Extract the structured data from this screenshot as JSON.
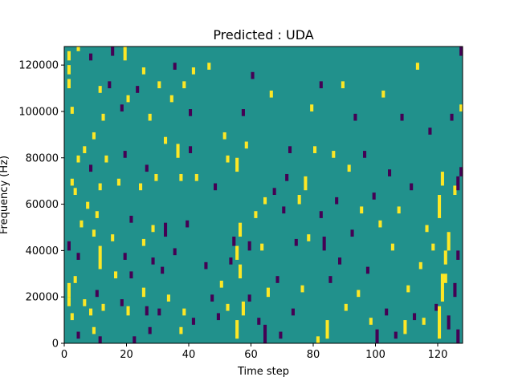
{
  "chart_data": {
    "type": "heatmap",
    "title": "Predicted : UDA",
    "xlabel": "Time step",
    "ylabel": "Frequency (Hz)",
    "xlim": [
      0,
      128
    ],
    "ylim": [
      0,
      128000
    ],
    "x_ticks": [
      0,
      20,
      40,
      60,
      80,
      100,
      120
    ],
    "x_tick_labels": [
      "0",
      "20",
      "40",
      "60",
      "80",
      "100",
      "120"
    ],
    "y_ticks": [
      0,
      20000,
      40000,
      60000,
      80000,
      100000,
      120000
    ],
    "y_tick_labels": [
      "0",
      "20000",
      "40000",
      "60000",
      "80000",
      "100000",
      "120000"
    ],
    "rows": 128,
    "columns": 128,
    "colormap": "viridis",
    "colors": {
      "low": "#440154",
      "mid": "#21918c",
      "high": "#fde725",
      "axis": "#000000"
    },
    "background_value": "mid",
    "cells": [
      {
        "x": 1,
        "y": 20000,
        "h": 6000,
        "v": "high"
      },
      {
        "x": 1,
        "y": 16000,
        "h": 4000,
        "v": "high"
      },
      {
        "x": 1,
        "y": 40000,
        "h": 4000,
        "v": "low"
      },
      {
        "x": 1,
        "y": 110000,
        "h": 4000,
        "v": "high"
      },
      {
        "x": 1,
        "y": 116000,
        "h": 4000,
        "v": "high"
      },
      {
        "x": 1,
        "y": 122000,
        "h": 4000,
        "v": "high"
      },
      {
        "x": 2,
        "y": 10000,
        "h": 3000,
        "v": "high"
      },
      {
        "x": 2,
        "y": 68000,
        "h": 3000,
        "v": "high"
      },
      {
        "x": 2,
        "y": 99000,
        "h": 3000,
        "v": "high"
      },
      {
        "x": 3,
        "y": 26000,
        "h": 3000,
        "v": "high"
      },
      {
        "x": 3,
        "y": 64000,
        "h": 3000,
        "v": "high"
      },
      {
        "x": 4,
        "y": 2000,
        "h": 3000,
        "v": "low"
      },
      {
        "x": 4,
        "y": 36000,
        "h": 3000,
        "v": "low"
      },
      {
        "x": 4,
        "y": 78000,
        "h": 3000,
        "v": "high"
      },
      {
        "x": 4,
        "y": 126000,
        "h": 2000,
        "v": "high"
      },
      {
        "x": 5,
        "y": 50000,
        "h": 3000,
        "v": "high"
      },
      {
        "x": 6,
        "y": 16000,
        "h": 3000,
        "v": "high"
      },
      {
        "x": 6,
        "y": 82000,
        "h": 3000,
        "v": "high"
      },
      {
        "x": 7,
        "y": 58000,
        "h": 3000,
        "v": "high"
      },
      {
        "x": 8,
        "y": 12000,
        "h": 3000,
        "v": "high"
      },
      {
        "x": 8,
        "y": 74000,
        "h": 3000,
        "v": "low"
      },
      {
        "x": 8,
        "y": 122000,
        "h": 3000,
        "v": "low"
      },
      {
        "x": 9,
        "y": 4000,
        "h": 3000,
        "v": "high"
      },
      {
        "x": 9,
        "y": 46000,
        "h": 3000,
        "v": "high"
      },
      {
        "x": 9,
        "y": 88000,
        "h": 3000,
        "v": "high"
      },
      {
        "x": 10,
        "y": 20000,
        "h": 3000,
        "v": "low"
      },
      {
        "x": 10,
        "y": 54000,
        "h": 3000,
        "v": "high"
      },
      {
        "x": 11,
        "y": 32000,
        "h": 10000,
        "v": "high"
      },
      {
        "x": 11,
        "y": 0,
        "h": 3000,
        "v": "low"
      },
      {
        "x": 11,
        "y": 66000,
        "h": 3000,
        "v": "high"
      },
      {
        "x": 11,
        "y": 108000,
        "h": 3000,
        "v": "high"
      },
      {
        "x": 12,
        "y": 14000,
        "h": 3000,
        "v": "high"
      },
      {
        "x": 12,
        "y": 96000,
        "h": 3000,
        "v": "high"
      },
      {
        "x": 13,
        "y": 78000,
        "h": 3000,
        "v": "high"
      },
      {
        "x": 14,
        "y": 110000,
        "h": 3000,
        "v": "low"
      },
      {
        "x": 15,
        "y": 44000,
        "h": 3000,
        "v": "high"
      },
      {
        "x": 15,
        "y": 124000,
        "h": 4000,
        "v": "low"
      },
      {
        "x": 16,
        "y": 28000,
        "h": 3000,
        "v": "high"
      },
      {
        "x": 17,
        "y": 68000,
        "h": 3000,
        "v": "high"
      },
      {
        "x": 18,
        "y": 16000,
        "h": 3000,
        "v": "low"
      },
      {
        "x": 18,
        "y": 100000,
        "h": 3000,
        "v": "low"
      },
      {
        "x": 19,
        "y": 36000,
        "h": 3000,
        "v": "low"
      },
      {
        "x": 19,
        "y": 80000,
        "h": 3000,
        "v": "low"
      },
      {
        "x": 19,
        "y": 122000,
        "h": 6000,
        "v": "high"
      },
      {
        "x": 20,
        "y": 12000,
        "h": 4000,
        "v": "high"
      },
      {
        "x": 20,
        "y": 104000,
        "h": 3000,
        "v": "high"
      },
      {
        "x": 21,
        "y": 52000,
        "h": 3000,
        "v": "low"
      },
      {
        "x": 21,
        "y": 28000,
        "h": 3000,
        "v": "low"
      },
      {
        "x": 22,
        "y": 0,
        "h": 3000,
        "v": "low"
      },
      {
        "x": 23,
        "y": 108000,
        "h": 3000,
        "v": "low"
      },
      {
        "x": 24,
        "y": 66000,
        "h": 3000,
        "v": "high"
      },
      {
        "x": 25,
        "y": 42000,
        "h": 3000,
        "v": "high"
      },
      {
        "x": 25,
        "y": 20000,
        "h": 4000,
        "v": "high"
      },
      {
        "x": 25,
        "y": 116000,
        "h": 3000,
        "v": "high"
      },
      {
        "x": 26,
        "y": 12000,
        "h": 4000,
        "v": "low"
      },
      {
        "x": 26,
        "y": 74000,
        "h": 3000,
        "v": "low"
      },
      {
        "x": 27,
        "y": 4000,
        "h": 3000,
        "v": "low"
      },
      {
        "x": 27,
        "y": 96000,
        "h": 3000,
        "v": "high"
      },
      {
        "x": 28,
        "y": 34000,
        "h": 3000,
        "v": "low"
      },
      {
        "x": 28,
        "y": 48000,
        "h": 3000,
        "v": "high"
      },
      {
        "x": 29,
        "y": 70000,
        "h": 3000,
        "v": "high"
      },
      {
        "x": 30,
        "y": 12000,
        "h": 3000,
        "v": "low"
      },
      {
        "x": 30,
        "y": 110000,
        "h": 3000,
        "v": "high"
      },
      {
        "x": 31,
        "y": 30000,
        "h": 3000,
        "v": "low"
      },
      {
        "x": 32,
        "y": 46000,
        "h": 6000,
        "v": "low"
      },
      {
        "x": 32,
        "y": 86000,
        "h": 3000,
        "v": "high"
      },
      {
        "x": 33,
        "y": 18000,
        "h": 3000,
        "v": "high"
      },
      {
        "x": 34,
        "y": 104000,
        "h": 3000,
        "v": "high"
      },
      {
        "x": 35,
        "y": 38000,
        "h": 3000,
        "v": "low"
      },
      {
        "x": 35,
        "y": 118000,
        "h": 3000,
        "v": "low"
      },
      {
        "x": 36,
        "y": 80000,
        "h": 6000,
        "v": "high"
      },
      {
        "x": 37,
        "y": 4000,
        "h": 3000,
        "v": "high"
      },
      {
        "x": 37,
        "y": 70000,
        "h": 3000,
        "v": "high"
      },
      {
        "x": 38,
        "y": 12000,
        "h": 3000,
        "v": "high"
      },
      {
        "x": 38,
        "y": 110000,
        "h": 3000,
        "v": "high"
      },
      {
        "x": 39,
        "y": 50000,
        "h": 3000,
        "v": "low"
      },
      {
        "x": 40,
        "y": 98000,
        "h": 3000,
        "v": "low"
      },
      {
        "x": 40,
        "y": 82000,
        "h": 3000,
        "v": "low"
      },
      {
        "x": 41,
        "y": 8000,
        "h": 3000,
        "v": "low"
      },
      {
        "x": 41,
        "y": 116000,
        "h": 3000,
        "v": "high"
      },
      {
        "x": 42,
        "y": 70000,
        "h": 3000,
        "v": "high"
      },
      {
        "x": 45,
        "y": 32000,
        "h": 3000,
        "v": "low"
      },
      {
        "x": 46,
        "y": 118000,
        "h": 3000,
        "v": "high"
      },
      {
        "x": 47,
        "y": 18000,
        "h": 3000,
        "v": "low"
      },
      {
        "x": 48,
        "y": 66000,
        "h": 3000,
        "v": "low"
      },
      {
        "x": 49,
        "y": 10000,
        "h": 3000,
        "v": "low"
      },
      {
        "x": 50,
        "y": 24000,
        "h": 3000,
        "v": "high"
      },
      {
        "x": 51,
        "y": 88000,
        "h": 3000,
        "v": "high"
      },
      {
        "x": 52,
        "y": 14000,
        "h": 3000,
        "v": "high"
      },
      {
        "x": 52,
        "y": 78000,
        "h": 3000,
        "v": "high"
      },
      {
        "x": 53,
        "y": 34000,
        "h": 3000,
        "v": "low"
      },
      {
        "x": 54,
        "y": 42000,
        "h": 4000,
        "v": "low"
      },
      {
        "x": 55,
        "y": 2000,
        "h": 8000,
        "v": "high"
      },
      {
        "x": 55,
        "y": 36000,
        "h": 6000,
        "v": "high"
      },
      {
        "x": 55,
        "y": 74000,
        "h": 6000,
        "v": "high"
      },
      {
        "x": 56,
        "y": 46000,
        "h": 6000,
        "v": "high"
      },
      {
        "x": 56,
        "y": 28000,
        "h": 6000,
        "v": "high"
      },
      {
        "x": 57,
        "y": 12000,
        "h": 6000,
        "v": "high"
      },
      {
        "x": 57,
        "y": 98000,
        "h": 3000,
        "v": "low"
      },
      {
        "x": 58,
        "y": 84000,
        "h": 3000,
        "v": "high"
      },
      {
        "x": 59,
        "y": 18000,
        "h": 3000,
        "v": "low"
      },
      {
        "x": 59,
        "y": 40000,
        "h": 4000,
        "v": "low"
      },
      {
        "x": 60,
        "y": 114000,
        "h": 3000,
        "v": "low"
      },
      {
        "x": 61,
        "y": 54000,
        "h": 3000,
        "v": "high"
      },
      {
        "x": 62,
        "y": 8000,
        "h": 3000,
        "v": "low"
      },
      {
        "x": 63,
        "y": 40000,
        "h": 3000,
        "v": "high"
      },
      {
        "x": 64,
        "y": 0,
        "h": 8000,
        "v": "low"
      },
      {
        "x": 64,
        "y": 60000,
        "h": 3000,
        "v": "high"
      },
      {
        "x": 65,
        "y": 20000,
        "h": 4000,
        "v": "high"
      },
      {
        "x": 66,
        "y": 106000,
        "h": 3000,
        "v": "high"
      },
      {
        "x": 67,
        "y": 64000,
        "h": 3000,
        "v": "low"
      },
      {
        "x": 68,
        "y": 26000,
        "h": 3000,
        "v": "low"
      },
      {
        "x": 69,
        "y": 2000,
        "h": 3000,
        "v": "low"
      },
      {
        "x": 70,
        "y": 56000,
        "h": 3000,
        "v": "low"
      },
      {
        "x": 71,
        "y": 70000,
        "h": 3000,
        "v": "low"
      },
      {
        "x": 72,
        "y": 82000,
        "h": 3000,
        "v": "low"
      },
      {
        "x": 73,
        "y": 12000,
        "h": 3000,
        "v": "low"
      },
      {
        "x": 74,
        "y": 42000,
        "h": 3000,
        "v": "low"
      },
      {
        "x": 75,
        "y": 60000,
        "h": 4000,
        "v": "high"
      },
      {
        "x": 76,
        "y": 22000,
        "h": 3000,
        "v": "high"
      },
      {
        "x": 77,
        "y": 66000,
        "h": 6000,
        "v": "high"
      },
      {
        "x": 78,
        "y": 44000,
        "h": 3000,
        "v": "high"
      },
      {
        "x": 79,
        "y": 100000,
        "h": 3000,
        "v": "high"
      },
      {
        "x": 80,
        "y": 82000,
        "h": 3000,
        "v": "high"
      },
      {
        "x": 81,
        "y": 0,
        "h": 3000,
        "v": "high"
      },
      {
        "x": 82,
        "y": 54000,
        "h": 3000,
        "v": "low"
      },
      {
        "x": 82,
        "y": 110000,
        "h": 3000,
        "v": "low"
      },
      {
        "x": 83,
        "y": 40000,
        "h": 6000,
        "v": "low"
      },
      {
        "x": 84,
        "y": 2000,
        "h": 8000,
        "v": "high"
      },
      {
        "x": 85,
        "y": 26000,
        "h": 3000,
        "v": "low"
      },
      {
        "x": 86,
        "y": 80000,
        "h": 3000,
        "v": "high"
      },
      {
        "x": 87,
        "y": 60000,
        "h": 3000,
        "v": "low"
      },
      {
        "x": 88,
        "y": 34000,
        "h": 3000,
        "v": "low"
      },
      {
        "x": 89,
        "y": 110000,
        "h": 3000,
        "v": "high"
      },
      {
        "x": 90,
        "y": 14000,
        "h": 3000,
        "v": "high"
      },
      {
        "x": 91,
        "y": 74000,
        "h": 3000,
        "v": "high"
      },
      {
        "x": 92,
        "y": 46000,
        "h": 3000,
        "v": "low"
      },
      {
        "x": 93,
        "y": 96000,
        "h": 3000,
        "v": "low"
      },
      {
        "x": 94,
        "y": 20000,
        "h": 3000,
        "v": "high"
      },
      {
        "x": 95,
        "y": 56000,
        "h": 3000,
        "v": "high"
      },
      {
        "x": 96,
        "y": 80000,
        "h": 3000,
        "v": "low"
      },
      {
        "x": 97,
        "y": 30000,
        "h": 3000,
        "v": "low"
      },
      {
        "x": 98,
        "y": 8000,
        "h": 3000,
        "v": "high"
      },
      {
        "x": 99,
        "y": 62000,
        "h": 3000,
        "v": "low"
      },
      {
        "x": 100,
        "y": 0,
        "h": 6000,
        "v": "low"
      },
      {
        "x": 101,
        "y": 50000,
        "h": 3000,
        "v": "high"
      },
      {
        "x": 102,
        "y": 106000,
        "h": 3000,
        "v": "high"
      },
      {
        "x": 103,
        "y": 12000,
        "h": 3000,
        "v": "low"
      },
      {
        "x": 104,
        "y": 72000,
        "h": 3000,
        "v": "low"
      },
      {
        "x": 105,
        "y": 40000,
        "h": 3000,
        "v": "high"
      },
      {
        "x": 106,
        "y": 2000,
        "h": 3000,
        "v": "low"
      },
      {
        "x": 107,
        "y": 56000,
        "h": 3000,
        "v": "high"
      },
      {
        "x": 108,
        "y": 96000,
        "h": 3000,
        "v": "low"
      },
      {
        "x": 109,
        "y": 4000,
        "h": 6000,
        "v": "high"
      },
      {
        "x": 110,
        "y": 22000,
        "h": 3000,
        "v": "high"
      },
      {
        "x": 111,
        "y": 66000,
        "h": 3000,
        "v": "low"
      },
      {
        "x": 112,
        "y": 10000,
        "h": 3000,
        "v": "low"
      },
      {
        "x": 113,
        "y": 118000,
        "h": 3000,
        "v": "high"
      },
      {
        "x": 114,
        "y": 32000,
        "h": 3000,
        "v": "high"
      },
      {
        "x": 115,
        "y": 8000,
        "h": 3000,
        "v": "high"
      },
      {
        "x": 116,
        "y": 48000,
        "h": 3000,
        "v": "high"
      },
      {
        "x": 117,
        "y": 90000,
        "h": 3000,
        "v": "low"
      },
      {
        "x": 118,
        "y": 40000,
        "h": 3000,
        "v": "high"
      },
      {
        "x": 119,
        "y": 14000,
        "h": 3000,
        "v": "low"
      },
      {
        "x": 120,
        "y": 2000,
        "h": 14000,
        "v": "high"
      },
      {
        "x": 120,
        "y": 54000,
        "h": 10000,
        "v": "high"
      },
      {
        "x": 121,
        "y": 18000,
        "h": 12000,
        "v": "high"
      },
      {
        "x": 121,
        "y": 68000,
        "h": 6000,
        "v": "high"
      },
      {
        "x": 122,
        "y": 26000,
        "h": 4000,
        "v": "high"
      },
      {
        "x": 122,
        "y": 34000,
        "h": 6000,
        "v": "high"
      },
      {
        "x": 123,
        "y": 40000,
        "h": 8000,
        "v": "high"
      },
      {
        "x": 123,
        "y": 6000,
        "h": 6000,
        "v": "low"
      },
      {
        "x": 124,
        "y": 96000,
        "h": 3000,
        "v": "low"
      },
      {
        "x": 125,
        "y": 20000,
        "h": 6000,
        "v": "low"
      },
      {
        "x": 125,
        "y": 64000,
        "h": 4000,
        "v": "high"
      },
      {
        "x": 126,
        "y": 0,
        "h": 6000,
        "v": "low"
      },
      {
        "x": 126,
        "y": 36000,
        "h": 4000,
        "v": "low"
      },
      {
        "x": 126,
        "y": 66000,
        "h": 6000,
        "v": "low"
      },
      {
        "x": 127,
        "y": 100000,
        "h": 3000,
        "v": "high"
      },
      {
        "x": 127,
        "y": 72000,
        "h": 4000,
        "v": "low"
      },
      {
        "x": 127,
        "y": 124000,
        "h": 4000,
        "v": "low"
      }
    ]
  }
}
